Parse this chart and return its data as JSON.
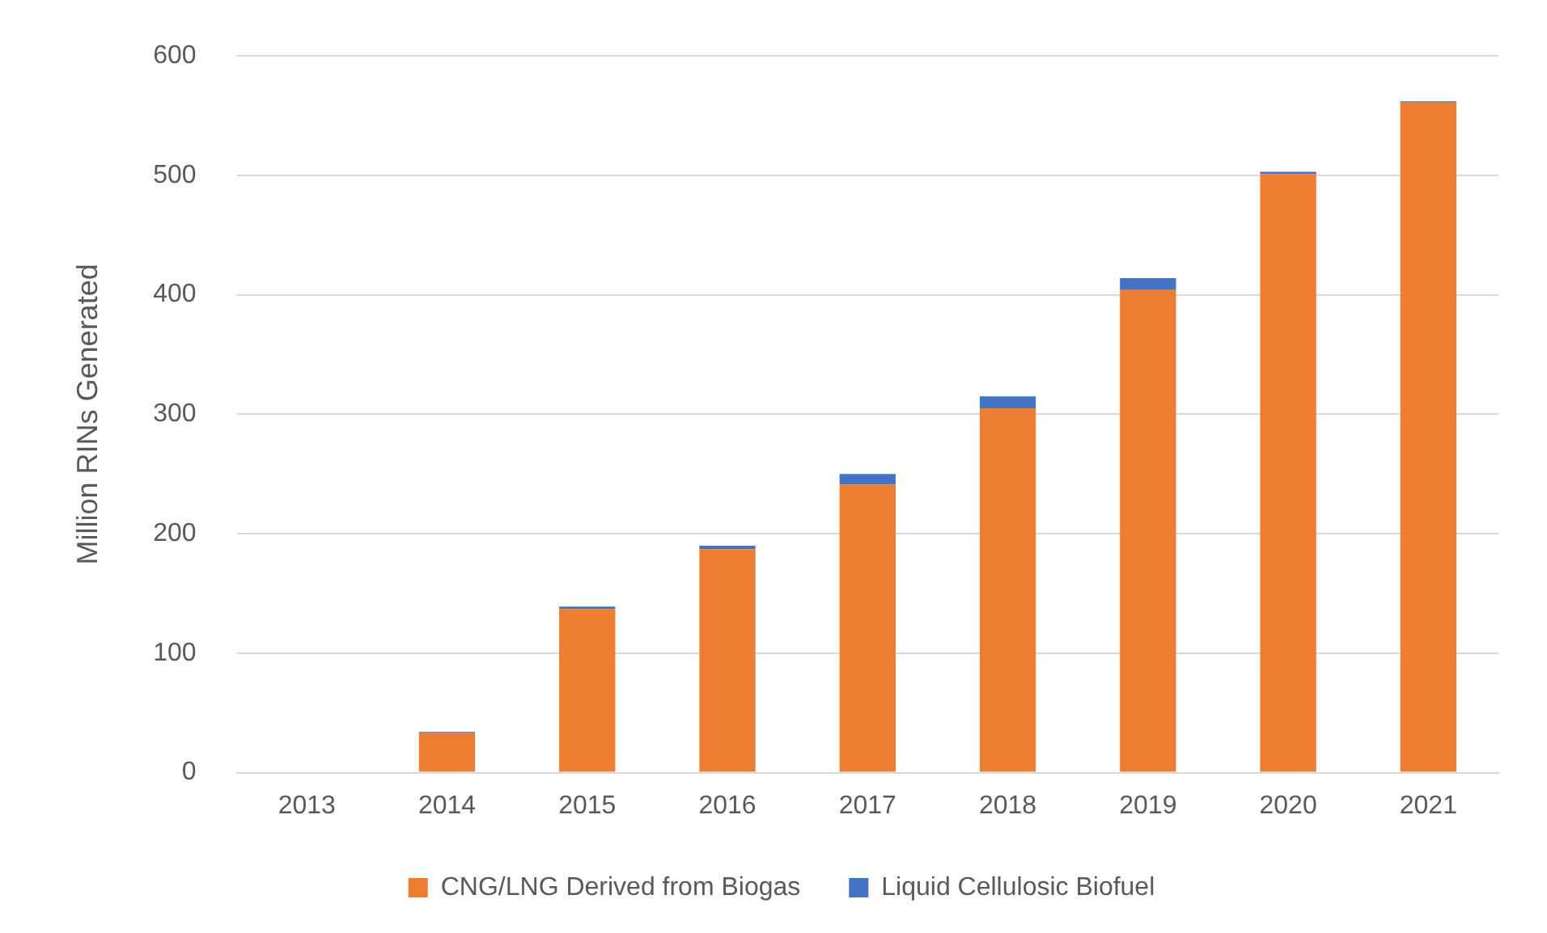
{
  "chart_data": {
    "type": "bar",
    "stacked": true,
    "ylabel": "Million RINs Generated",
    "categories": [
      "2013",
      "2014",
      "2015",
      "2016",
      "2017",
      "2018",
      "2019",
      "2020",
      "2021"
    ],
    "series": [
      {
        "name": "CNG/LNG Derived from Biogas",
        "color": "#ed7d31",
        "values": [
          0,
          33,
          137,
          187,
          241,
          305,
          404,
          501,
          561
        ]
      },
      {
        "name": "Liquid Cellulosic Biofuel",
        "color": "#4472c4",
        "values": [
          0,
          1,
          2,
          3,
          9,
          10,
          10,
          2,
          1
        ]
      }
    ],
    "ylim": [
      0,
      600
    ],
    "yticks": [
      0,
      100,
      200,
      300,
      400,
      500,
      600
    ],
    "grid": "y",
    "legend": "bottom"
  }
}
